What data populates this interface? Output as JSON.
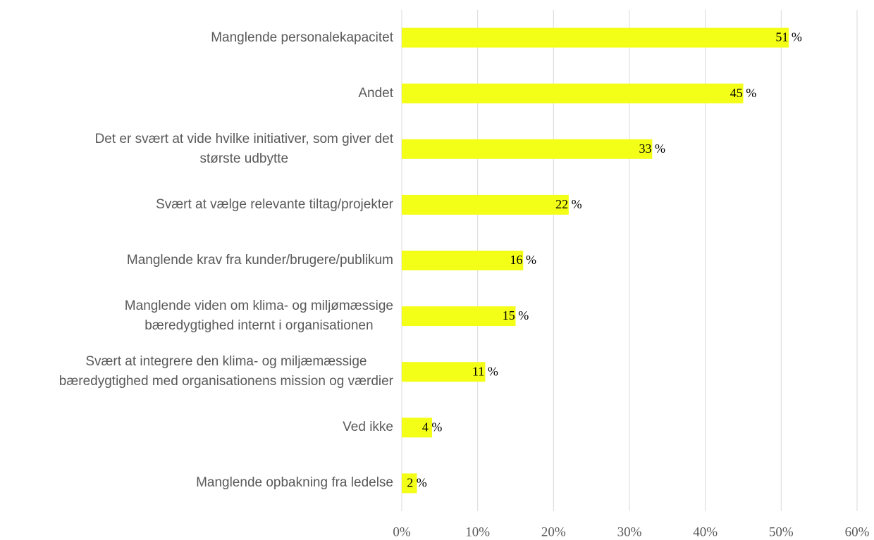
{
  "chart_data": {
    "type": "bar",
    "orientation": "horizontal",
    "categories": [
      "Manglende personalekapacitet",
      "Andet",
      "Det er svært at vide hvilke initiativer, som giver det\nstørste udbytte",
      "Svært at vælge relevante tiltag/projekter",
      "Manglende krav fra kunder/brugere/publikum",
      "Manglende viden om klima- og miljømæssige\nbæredygtighed internt i organisationen",
      "Svært at integrere den klima- og miljæmæssige\nbæredygtighed med organisationens mission og værdier",
      "Ved ikke",
      "Manglende opbakning fra ledelse"
    ],
    "values": [
      51,
      45,
      33,
      22,
      16,
      15,
      11,
      4,
      2
    ],
    "value_labels": [
      "51 %",
      "45 %",
      "33 %",
      "22 %",
      "16 %",
      "15 %",
      "11 %",
      "4 %",
      "2 %"
    ],
    "color": "#f4ff17",
    "xlim": [
      0,
      60
    ],
    "xticks": [
      {
        "value": 0,
        "label": "0%"
      },
      {
        "value": 10,
        "label": "10%"
      },
      {
        "value": 20,
        "label": "20%"
      },
      {
        "value": 30,
        "label": "30%"
      },
      {
        "value": 40,
        "label": "40%"
      },
      {
        "value": 50,
        "label": "50%"
      },
      {
        "value": 60,
        "label": "60%"
      }
    ],
    "grid": true
  }
}
